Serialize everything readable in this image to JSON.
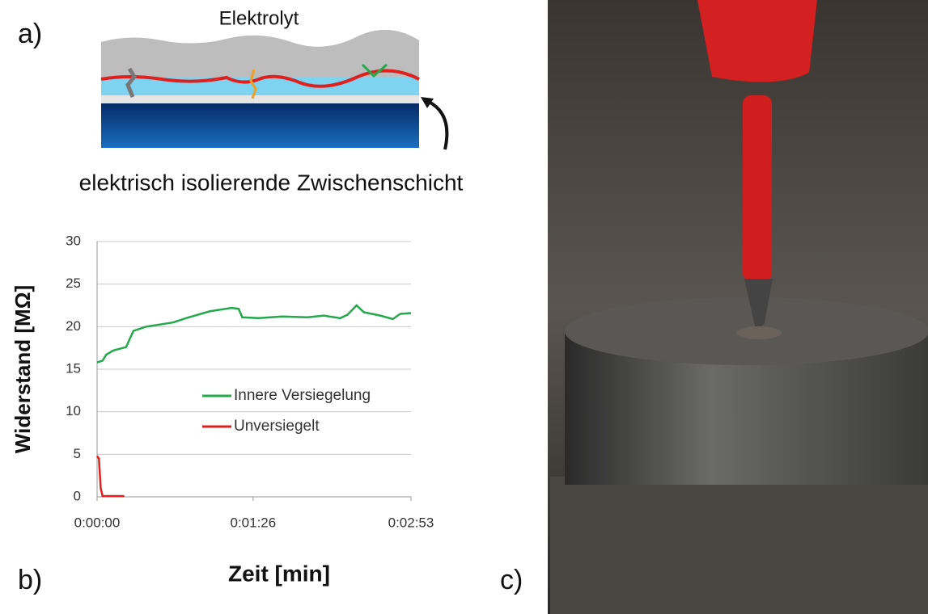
{
  "panels": {
    "a": "a)",
    "b": "b)",
    "c": "c)"
  },
  "diagram": {
    "top_label": "Elektrolyt",
    "bottom_label": "elektrisch isolierende Zwischenschicht"
  },
  "chart_data": {
    "type": "line",
    "xlabel": "Zeit [min]",
    "ylabel": "Widerstand [MΩ]",
    "xlim": [
      0,
      173
    ],
    "ylim": [
      0,
      30
    ],
    "xticks": [
      {
        "value": 0,
        "label": "0:00:00"
      },
      {
        "value": 86,
        "label": "0:01:26"
      },
      {
        "value": 173,
        "label": "0:02:53"
      }
    ],
    "yticks": [
      0,
      5,
      10,
      15,
      20,
      25,
      30
    ],
    "grid": true,
    "series": [
      {
        "name": "Innere Versiegelung",
        "color": "#23a84c",
        "x": [
          0,
          3,
          5,
          9,
          16,
          20,
          27,
          36,
          42,
          49,
          62,
          74,
          78,
          80,
          89,
          102,
          116,
          125,
          134,
          138,
          143,
          147,
          156,
          163,
          167,
          173
        ],
        "values": [
          15.8,
          16.0,
          16.7,
          17.2,
          17.6,
          19.5,
          20.0,
          20.3,
          20.5,
          21.0,
          21.8,
          22.2,
          22.1,
          21.1,
          21.0,
          21.2,
          21.1,
          21.3,
          21.0,
          21.4,
          22.5,
          21.7,
          21.3,
          20.9,
          21.5,
          21.6
        ]
      },
      {
        "name": "Unversiegelt",
        "color": "#e0201e",
        "x": [
          0,
          1,
          2,
          3,
          15
        ],
        "values": [
          4.8,
          4.5,
          1.0,
          0.1,
          0.1
        ]
      }
    ]
  }
}
